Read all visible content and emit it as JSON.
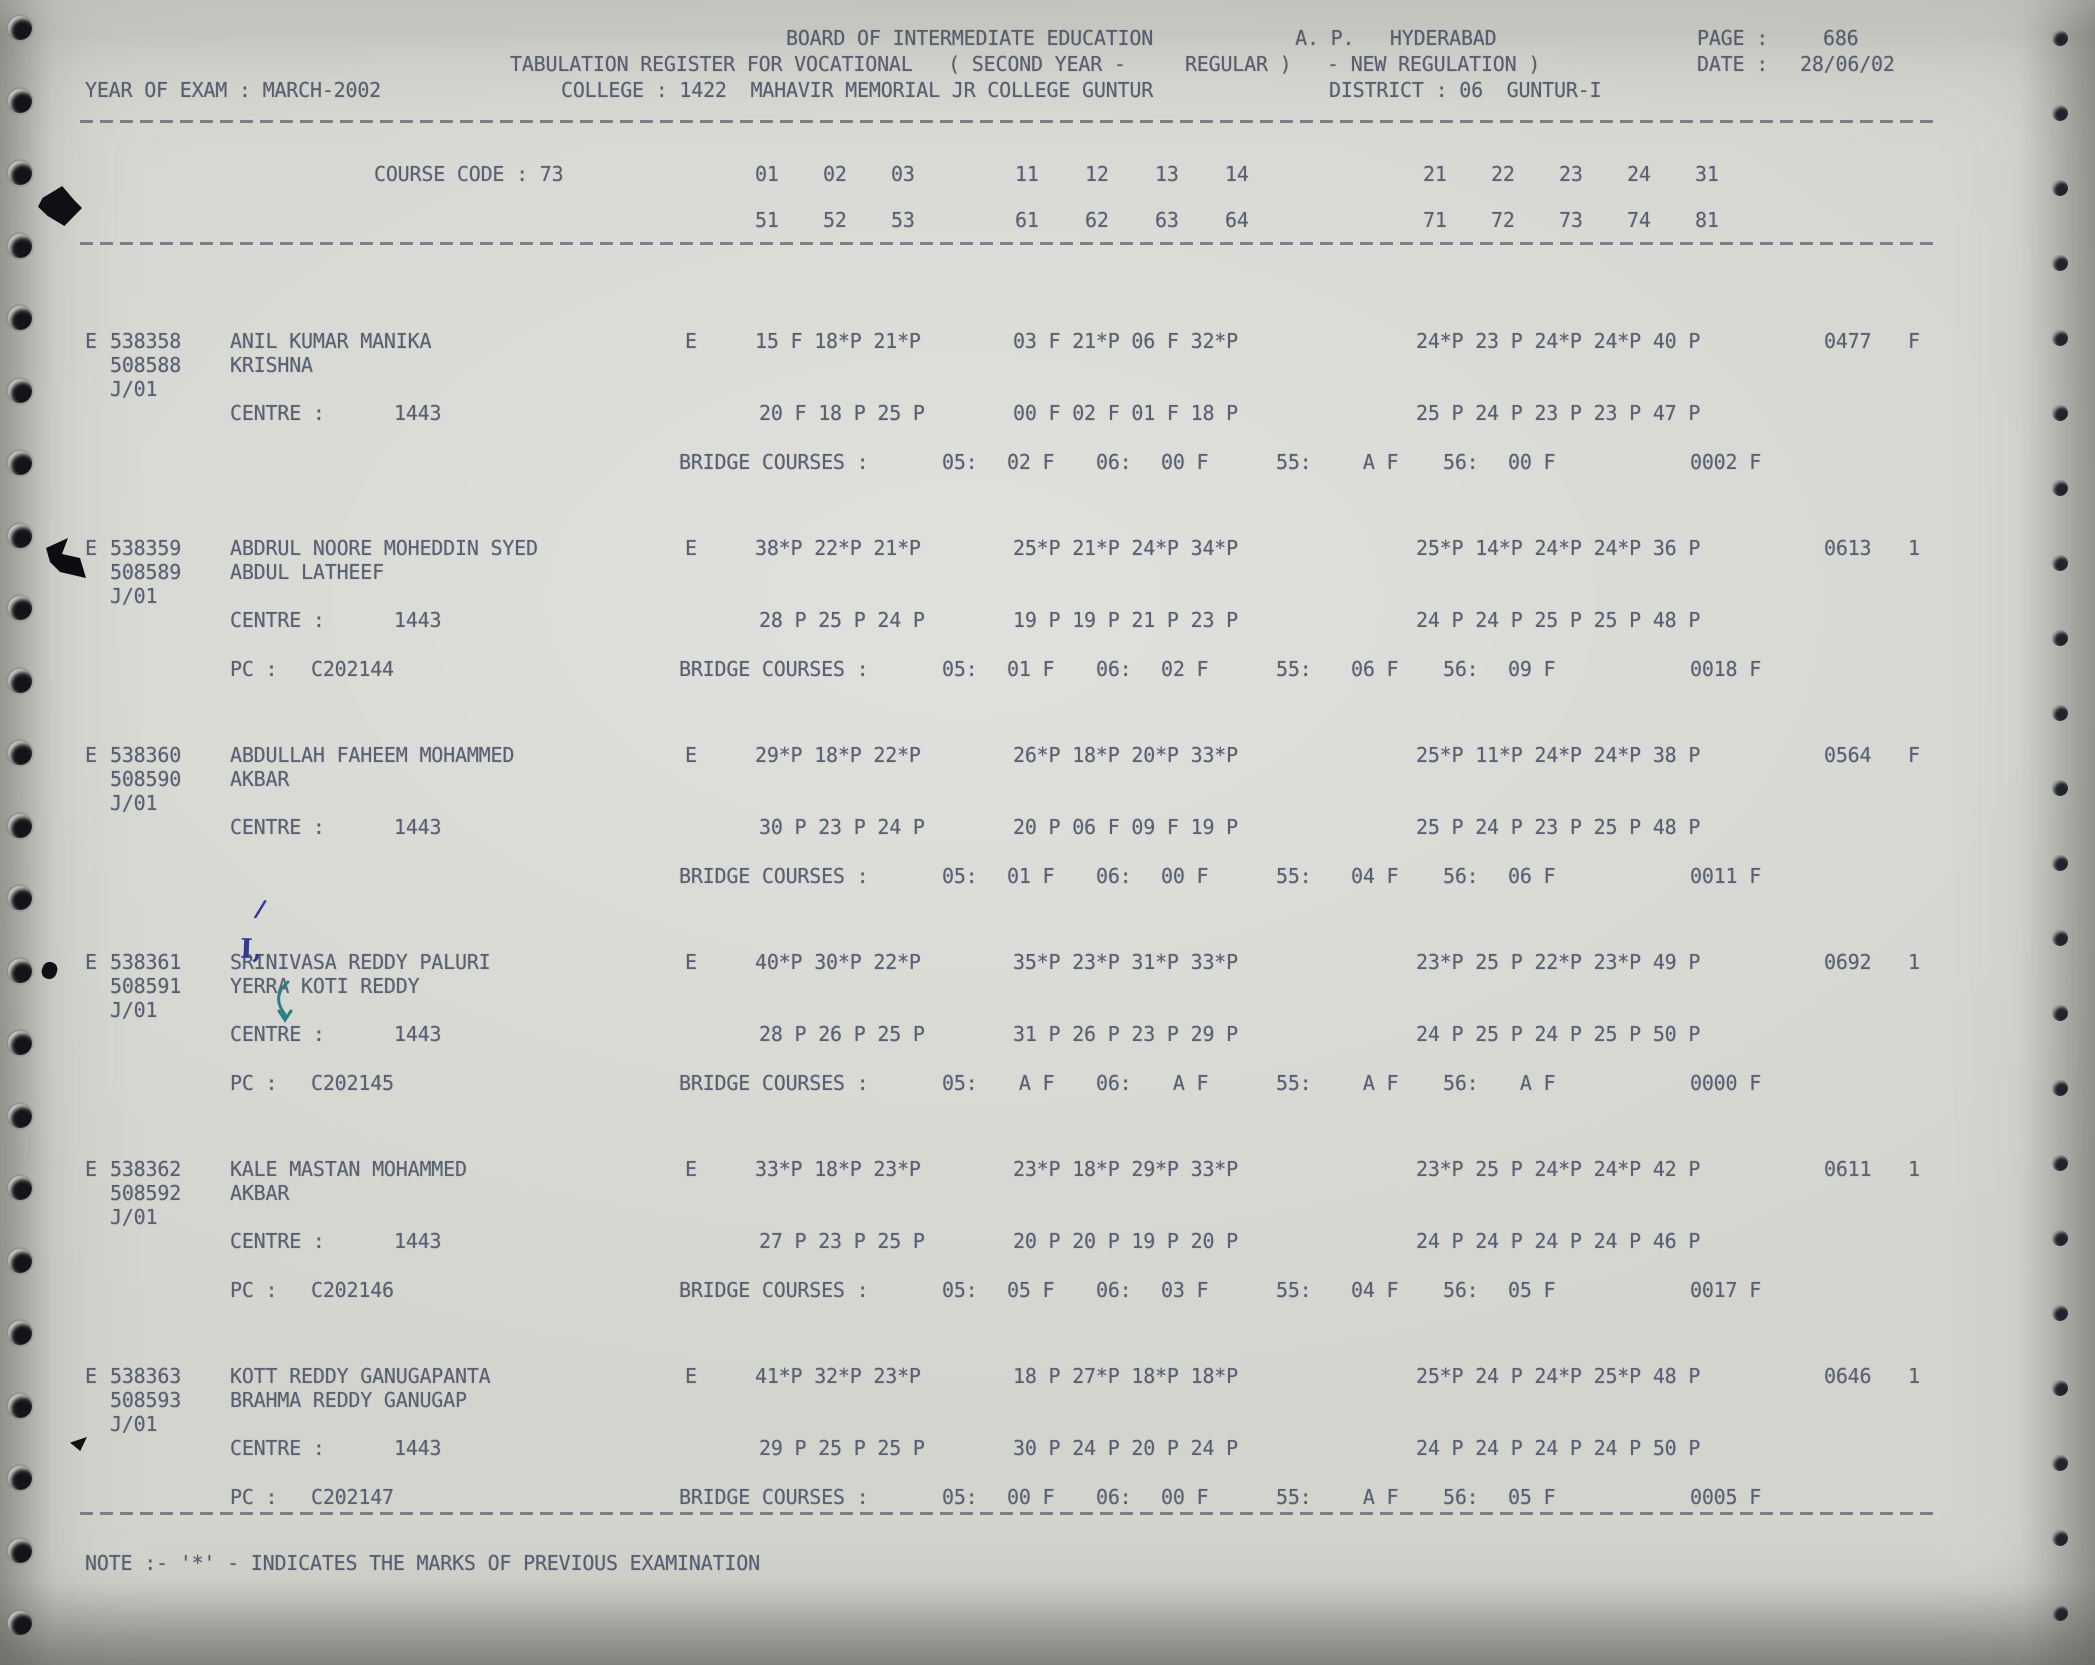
{
  "document": {
    "header": {
      "board_line": "BOARD OF INTERMEDIATE EDUCATION            A. P.   HYDERABAD",
      "page_label": "PAGE :",
      "page_value": "686",
      "register_line": "TABULATION REGISTER FOR VOCATIONAL   ( SECOND YEAR -     REGULAR )   - NEW REGULATION )",
      "date_label": "DATE :",
      "date_value": "28/06/02",
      "year_of_exam": "YEAR OF EXAM : MARCH-2002",
      "college": "COLLEGE : 1422  MAHAVIR MEMORIAL JR COLLEGE GUNTUR",
      "district": "DISTRICT : 06  GUNTUR-I"
    },
    "course": {
      "code_label": "COURSE CODE : 73",
      "subjects_row1": [
        "01",
        "02",
        "03",
        "11",
        "12",
        "13",
        "14",
        "21",
        "22",
        "23",
        "24",
        "31"
      ],
      "subjects_row2": [
        "51",
        "52",
        "53",
        "61",
        "62",
        "63",
        "64",
        "71",
        "72",
        "73",
        "74",
        "81"
      ]
    },
    "labels": {
      "centre": "CENTRE :",
      "bridge": "BRIDGE COURSES :",
      "b05": "05:",
      "b06": "06:",
      "b55": "55:",
      "b56": "56:"
    },
    "records": [
      {
        "serial": "E",
        "regno1": "538358",
        "name_line1": "ANIL KUMAR MANIKA",
        "regno2": "508588",
        "name_line2": "KRISHNA",
        "appearance": "J/01",
        "medium": "E",
        "centre": "1443",
        "marks_row1": {
          "group1": "15 F 18*P 21*P",
          "group2": "03 F 21*P 06 F 32*P",
          "group3": "24*P 23 P 24*P 24*P 40 P",
          "total": "0477",
          "result": "F"
        },
        "marks_row2": {
          "group1": "20 F 18 P 25 P",
          "group2": "00 F 02 F 01 F 18 P",
          "group3": "25 P 24 P 23 P 23 P 47 P"
        },
        "bridge": {
          "c05": "02 F",
          "c06": "00 F",
          "c55": " A F",
          "c56": "00 F",
          "total": "0002 F"
        }
      },
      {
        "serial": "E",
        "regno1": "538359",
        "name_line1": "ABDRUL NOORE MOHEDDIN SYED",
        "regno2": "508589",
        "name_line2": "ABDUL LATHEEF",
        "appearance": "J/01",
        "medium": "E",
        "centre": "1443",
        "pc_row": {
          "label": "PC :",
          "value": "C202144"
        },
        "marks_row1": {
          "group1": "38*P 22*P 21*P",
          "group2": "25*P 21*P 24*P 34*P",
          "group3": "25*P 14*P 24*P 24*P 36 P",
          "total": "0613",
          "result": "1"
        },
        "marks_row2": {
          "group1": "28 P 25 P 24 P",
          "group2": "19 P 19 P 21 P 23 P",
          "group3": "24 P 24 P 25 P 25 P 48 P"
        },
        "bridge": {
          "c05": "01 F",
          "c06": "02 F",
          "c55": "06 F",
          "c56": "09 F",
          "total": "0018 F"
        }
      },
      {
        "serial": "E",
        "regno1": "538360",
        "name_line1": "ABDULLAH FAHEEM MOHAMMED",
        "regno2": "508590",
        "name_line2": "AKBAR",
        "appearance": "J/01",
        "medium": "E",
        "centre": "1443",
        "marks_row1": {
          "group1": "29*P 18*P 22*P",
          "group2": "26*P 18*P 20*P 33*P",
          "group3": "25*P 11*P 24*P 24*P 38 P",
          "total": "0564",
          "result": "F"
        },
        "marks_row2": {
          "group1": "30 P 23 P 24 P",
          "group2": "20 P 06 F 09 F 19 P",
          "group3": "25 P 24 P 23 P 25 P 48 P"
        },
        "bridge": {
          "c05": "01 F",
          "c06": "00 F",
          "c55": "04 F",
          "c56": "06 F",
          "total": "0011 F"
        }
      },
      {
        "serial": "E",
        "regno1": "538361",
        "name_line1": "SRINIVASA REDDY PALURI",
        "regno2": "508591",
        "name_line2": "YERRA KOTI REDDY",
        "appearance": "J/01",
        "medium": "E",
        "centre": "1443",
        "pc_row": {
          "label": "PC :",
          "value": "C202145"
        },
        "marks_row1": {
          "group1": "40*P 30*P 22*P",
          "group2": "35*P 23*P 31*P 33*P",
          "group3": "23*P 25 P 22*P 23*P 49 P",
          "total": "0692",
          "result": "1"
        },
        "marks_row2": {
          "group1": "28 P 26 P 25 P",
          "group2": "31 P 26 P 23 P 29 P",
          "group3": "24 P 25 P 24 P 25 P 50 P"
        },
        "bridge": {
          "c05": " A F",
          "c06": " A F",
          "c55": " A F",
          "c56": " A F",
          "total": "0000 F"
        }
      },
      {
        "serial": "E",
        "regno1": "538362",
        "name_line1": "KALE MASTAN MOHAMMED",
        "regno2": "508592",
        "name_line2": "AKBAR",
        "appearance": "J/01",
        "medium": "E",
        "centre": "1443",
        "pc_row": {
          "label": "PC :",
          "value": "C202146"
        },
        "marks_row1": {
          "group1": "33*P 18*P 23*P",
          "group2": "23*P 18*P 29*P 33*P",
          "group3": "23*P 25 P 24*P 24*P 42 P",
          "total": "0611",
          "result": "1"
        },
        "marks_row2": {
          "group1": "27 P 23 P 25 P",
          "group2": "20 P 20 P 19 P 20 P",
          "group3": "24 P 24 P 24 P 24 P 46 P"
        },
        "bridge": {
          "c05": "05 F",
          "c06": "03 F",
          "c55": "04 F",
          "c56": "05 F",
          "total": "0017 F"
        }
      },
      {
        "serial": "E",
        "regno1": "538363",
        "name_line1": "KOTT REDDY GANUGAPANTA",
        "regno2": "508593",
        "name_line2": "BRAHMA REDDY GANUGAP",
        "appearance": "J/01",
        "medium": "E",
        "centre": "1443",
        "pc_row": {
          "label": "PC :",
          "value": "C202147"
        },
        "marks_row1": {
          "group1": "41*P 32*P 23*P",
          "group2": "18 P 27*P 18*P 18*P",
          "group3": "25*P 24 P 24*P 25*P 48 P",
          "total": "0646",
          "result": "1"
        },
        "marks_row2": {
          "group1": "29 P 25 P 25 P",
          "group2": "30 P 24 P 20 P 24 P",
          "group3": "24 P 24 P 24 P 24 P 50 P"
        },
        "bridge": {
          "c05": "00 F",
          "c06": "00 F",
          "c55": " A F",
          "c56": "05 F",
          "total": "0005 F"
        }
      }
    ],
    "note": "NOTE :- '*' - INDICATES THE MARKS OF PREVIOUS EXAMINATION",
    "annotations": {
      "handwritten_mark_1": "I,",
      "handwritten_mark_2": "/"
    }
  }
}
